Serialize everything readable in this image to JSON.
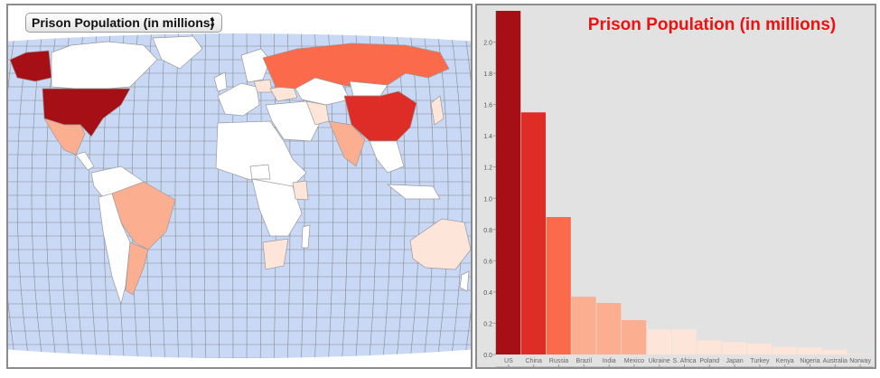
{
  "selector": {
    "selected": "Prison Population (in millions)"
  },
  "chart_data": {
    "type": "bar",
    "title": "Prison Population (in millions)",
    "categories": [
      "US",
      "China",
      "Russia",
      "Brazil",
      "India",
      "Mexico",
      "Ukraine",
      "S. Africa",
      "Poland",
      "Japan",
      "Turkey",
      "Kenya",
      "Nigeria",
      "Australia",
      "Norway"
    ],
    "values": [
      2.2,
      1.55,
      0.88,
      0.37,
      0.33,
      0.22,
      0.16,
      0.16,
      0.09,
      0.08,
      0.07,
      0.05,
      0.045,
      0.03,
      0.004
    ],
    "colors": [
      "#a50f15",
      "#de2d26",
      "#fb6a4a",
      "#fcae91",
      "#fcae91",
      "#fcae91",
      "#fee5d9",
      "#fee5d9",
      "#fee5d9",
      "#fee5d9",
      "#fee5d9",
      "#fee5d9",
      "#fee5d9",
      "#fee5d9",
      "#fee5d9"
    ],
    "y_ticks": [
      "0.0",
      "0.2",
      "0.4",
      "0.6",
      "0.8",
      "1.0",
      "1.2",
      "1.4",
      "1.6",
      "1.8",
      "2.0"
    ],
    "ylim": [
      0,
      2.2
    ],
    "xlabel": "",
    "ylabel": "",
    "grid": false
  },
  "map": {
    "ocean_color": "#c8d8f5",
    "land_default": "#ffffff",
    "countries": [
      {
        "name": "US",
        "fill": "#a50f15"
      },
      {
        "name": "Alaska",
        "fill": "#a50f15"
      },
      {
        "name": "China",
        "fill": "#de2d26"
      },
      {
        "name": "Russia",
        "fill": "#fb6a4a"
      },
      {
        "name": "Brazil",
        "fill": "#fcae91"
      },
      {
        "name": "India",
        "fill": "#fcae91"
      },
      {
        "name": "Mexico",
        "fill": "#fcae91"
      },
      {
        "name": "Argentina",
        "fill": "#fcae91"
      },
      {
        "name": "Ukraine",
        "fill": "#fee5d9"
      },
      {
        "name": "S. Africa",
        "fill": "#fee5d9"
      },
      {
        "name": "Australia",
        "fill": "#fee5d9"
      },
      {
        "name": "Kenya",
        "fill": "#fee5d9"
      },
      {
        "name": "Iran",
        "fill": "#fee5d9"
      },
      {
        "name": "Japan",
        "fill": "#fee5d9"
      },
      {
        "name": "Poland",
        "fill": "#fee5d9"
      }
    ]
  }
}
